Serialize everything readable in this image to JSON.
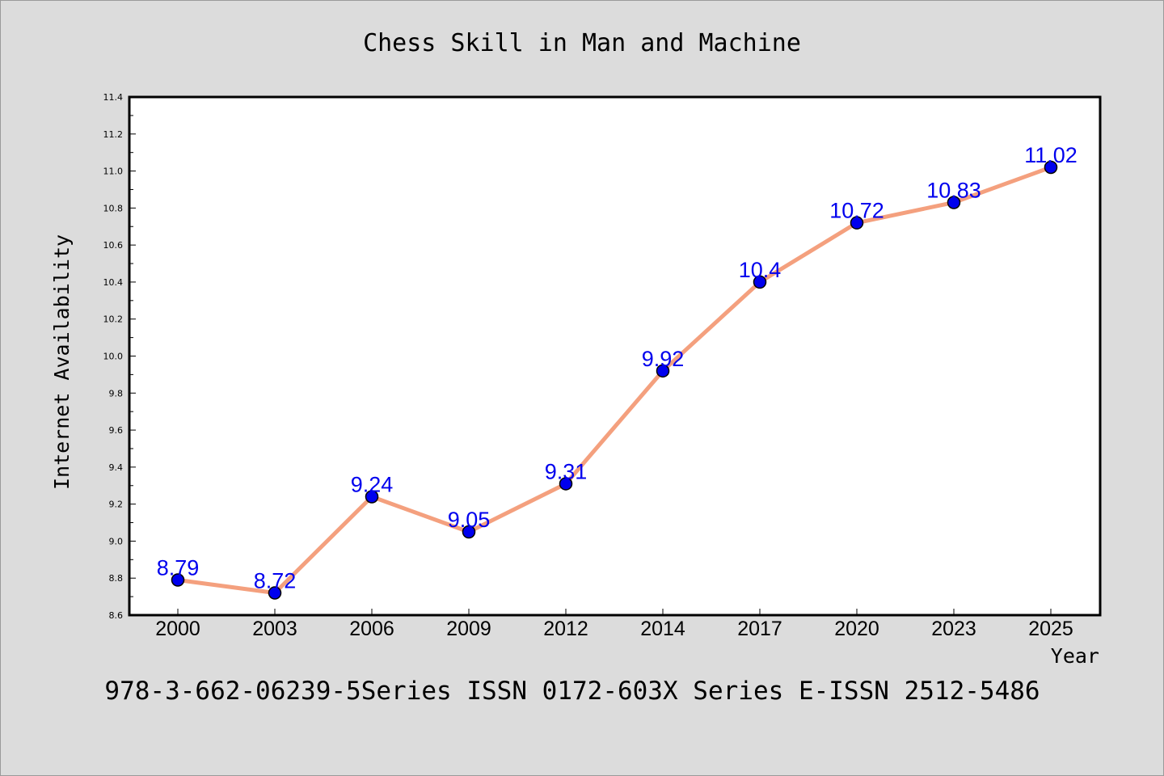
{
  "chart_data": {
    "type": "line",
    "title": "Chess Skill in Man and Machine",
    "xlabel": "Year",
    "ylabel": "Internet Availability",
    "categories": [
      "2000",
      "2003",
      "2006",
      "2009",
      "2012",
      "2014",
      "2017",
      "2020",
      "2023",
      "2025"
    ],
    "series": [
      {
        "values": [
          8.79,
          8.72,
          9.24,
          9.05,
          9.31,
          9.92,
          10.4,
          10.72,
          10.83,
          11.02
        ]
      }
    ],
    "data_labels": [
      "8.79",
      "8.72",
      "9.24",
      "9.05",
      "9.31",
      "9.92",
      "10.4",
      "10.72",
      "10.83",
      "11.02"
    ],
    "ylim": [
      8.6,
      11.4
    ],
    "yticks": [
      8.6,
      8.8,
      9.0,
      9.2,
      9.4,
      9.6,
      9.8,
      10.0,
      10.2,
      10.4,
      10.6,
      10.8,
      11.0,
      11.2,
      11.4
    ],
    "ytick_labels": [
      "8.6",
      "8.8",
      "9.0",
      "9.2",
      "9.4",
      "9.6",
      "9.8",
      "10.0",
      "10.2",
      "10.4",
      "10.6",
      "10.8",
      "11.0",
      "11.2",
      "11.4"
    ],
    "grid": false,
    "legend": "none",
    "colors": {
      "line": "#f4a07e",
      "marker": "#0000ee",
      "label": "#0000ee",
      "background": "#dcdcdc",
      "plot_area": "#ffffff"
    }
  },
  "footer": {
    "text": "978-3-662-06239-5Series ISSN 0172-603X Series E-ISSN 2512-5486"
  }
}
